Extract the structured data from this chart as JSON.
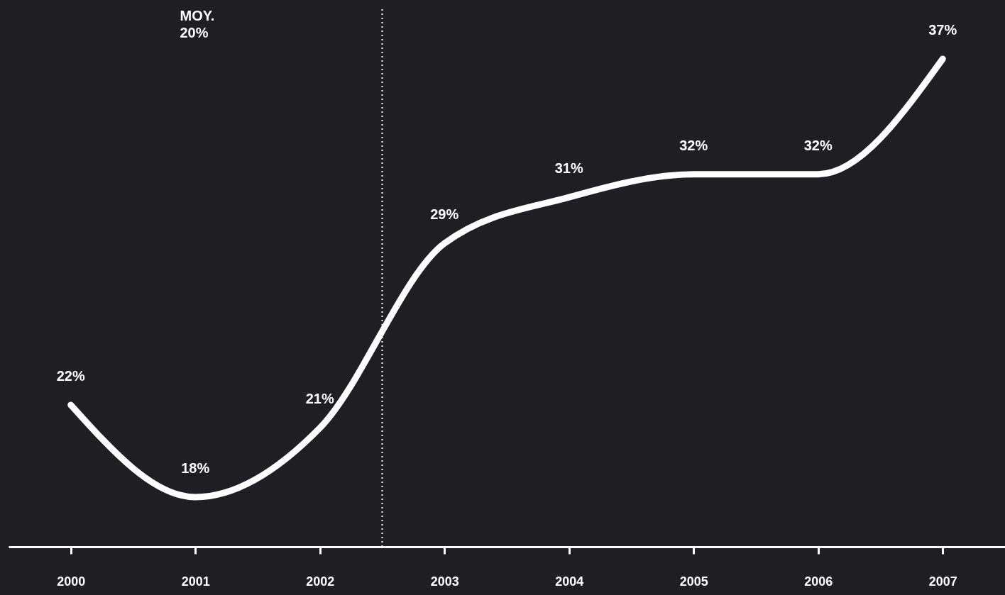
{
  "chart_data": {
    "type": "line",
    "x": [
      2000,
      2001,
      2002,
      2003,
      2004,
      2005,
      2006,
      2007
    ],
    "series": [
      {
        "color": "#ffffff",
        "values": [
          22,
          18,
          21,
          29,
          31,
          32,
          32,
          37
        ],
        "value_labels": [
          "22%",
          "18%",
          "21%",
          "29%",
          "31%",
          "32%",
          "32%",
          "37%"
        ]
      }
    ],
    "xlim": [
      1999.5,
      2007.5
    ],
    "xticks": [
      2000,
      2001,
      2002,
      2003,
      2004,
      2005,
      2006,
      2007
    ],
    "ref_lines": [
      {
        "axis": "x",
        "value": 2002.5,
        "label": "MOY.\n20%",
        "color": "#ffffff",
        "line_style": "dotted"
      }
    ],
    "tick_labels": "x",
    "grid": false,
    "marker": "none",
    "line_style": "solid"
  }
}
